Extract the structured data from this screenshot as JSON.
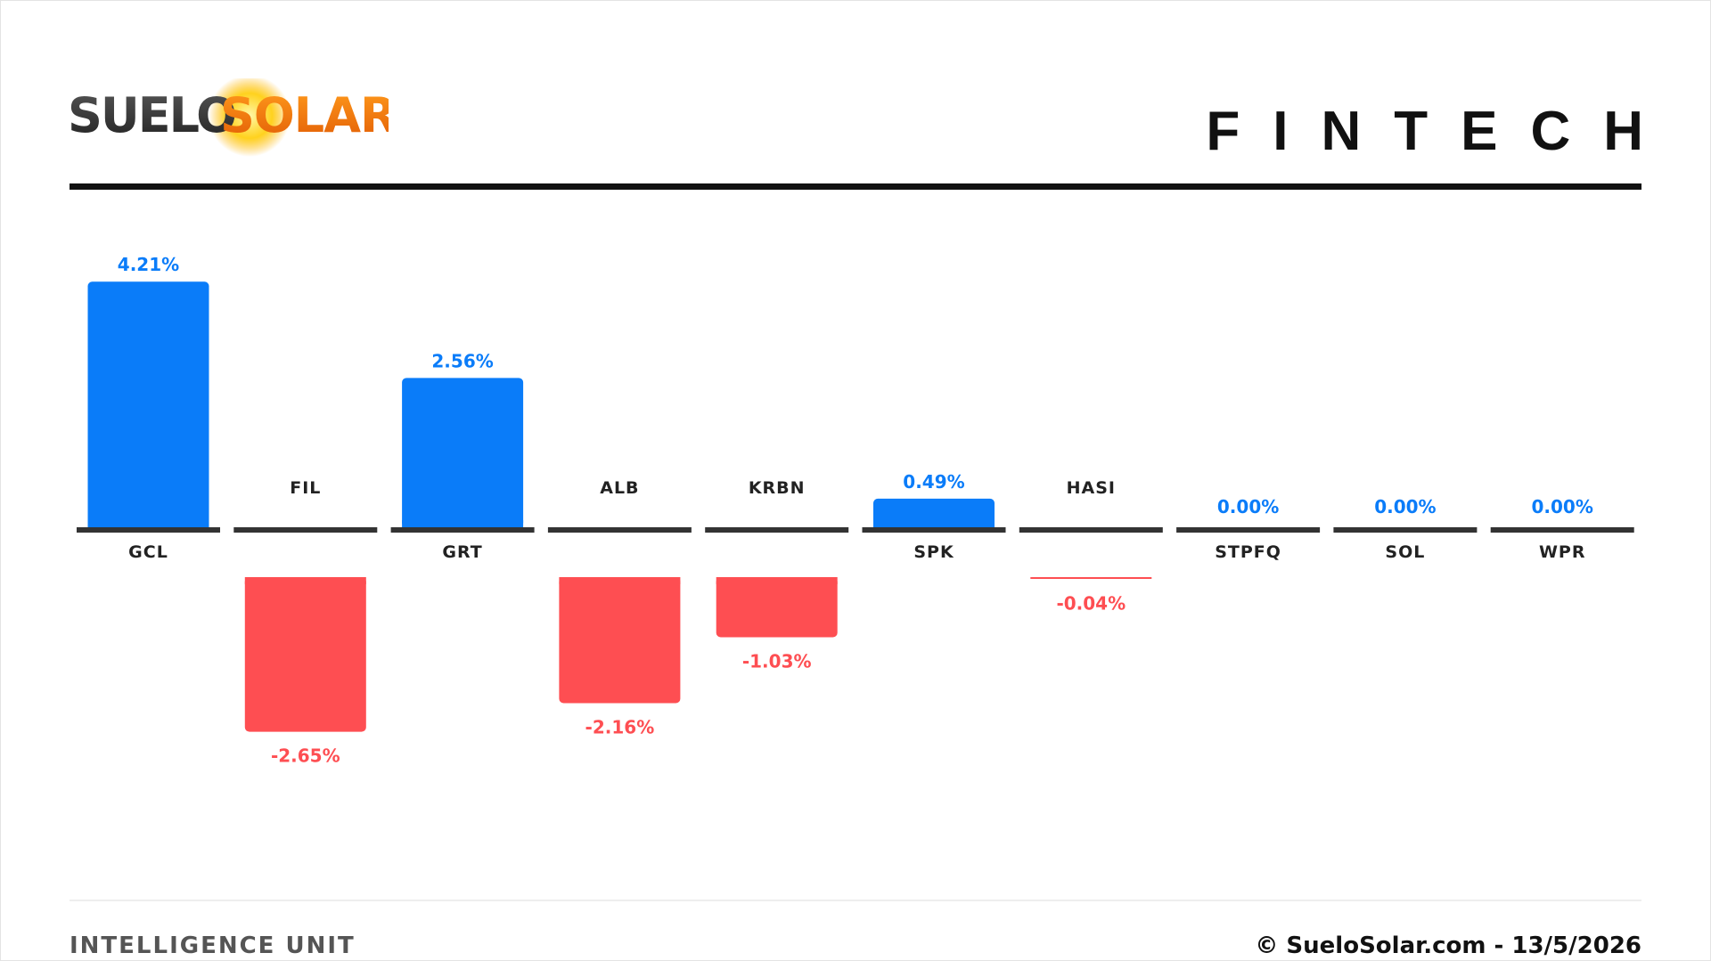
{
  "header": {
    "logo_text": "SUELOSOLAR",
    "title": "FINTECH"
  },
  "footer": {
    "left": "INTELLIGENCE UNIT",
    "right": "© SueloSolar.com - 13/5/2026"
  },
  "colors": {
    "positive": "#0a7cf9",
    "negative": "#fe4e52",
    "baseline": "#333333",
    "ticker": "#222222"
  },
  "chart_data": {
    "type": "bar",
    "categories": [
      "GCL",
      "FIL",
      "GRT",
      "ALB",
      "KRBN",
      "SPK",
      "HASI",
      "STPFQ",
      "SOL",
      "WPR"
    ],
    "values": [
      4.21,
      -2.65,
      2.56,
      -2.16,
      -1.03,
      0.49,
      -0.04,
      0.0,
      0.0,
      0.0
    ],
    "labels": [
      "4.21%",
      "-2.65%",
      "2.56%",
      "-2.16%",
      "-1.03%",
      "0.49%",
      "-0.04%",
      "0.00%",
      "0.00%",
      "0.00%"
    ],
    "title": "FINTECH",
    "xlabel": "",
    "ylabel": "",
    "grid": false
  }
}
